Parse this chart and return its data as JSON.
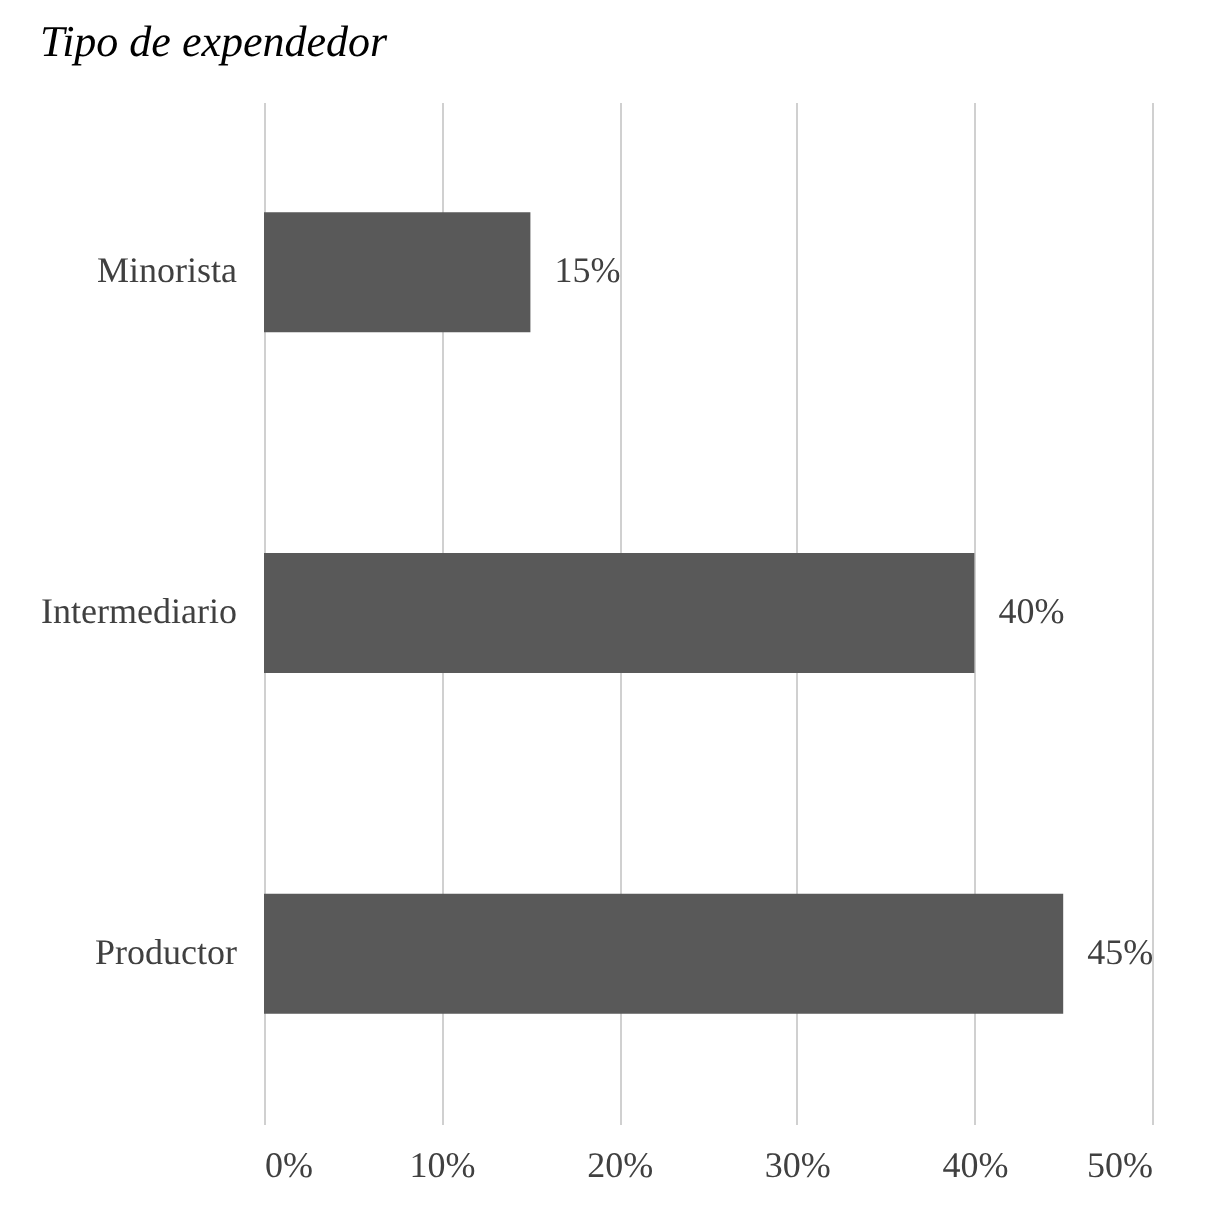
{
  "chart_data": {
    "type": "bar",
    "orientation": "horizontal",
    "title": "Tipo de expendedor",
    "categories": [
      "Minorista",
      "Intermediario",
      "Productor"
    ],
    "values": [
      15,
      40,
      45
    ],
    "color": "#595959",
    "value_labels": [
      "15%",
      "40%",
      "45%"
    ],
    "xlim": [
      0,
      50
    ],
    "xticks": [
      {
        "value": 0,
        "label": "0%"
      },
      {
        "value": 10,
        "label": "10%"
      },
      {
        "value": 20,
        "label": "20%"
      },
      {
        "value": 30,
        "label": "30%"
      },
      {
        "value": 40,
        "label": "40%"
      },
      {
        "value": 50,
        "label": "50%"
      }
    ],
    "grid": "x"
  }
}
